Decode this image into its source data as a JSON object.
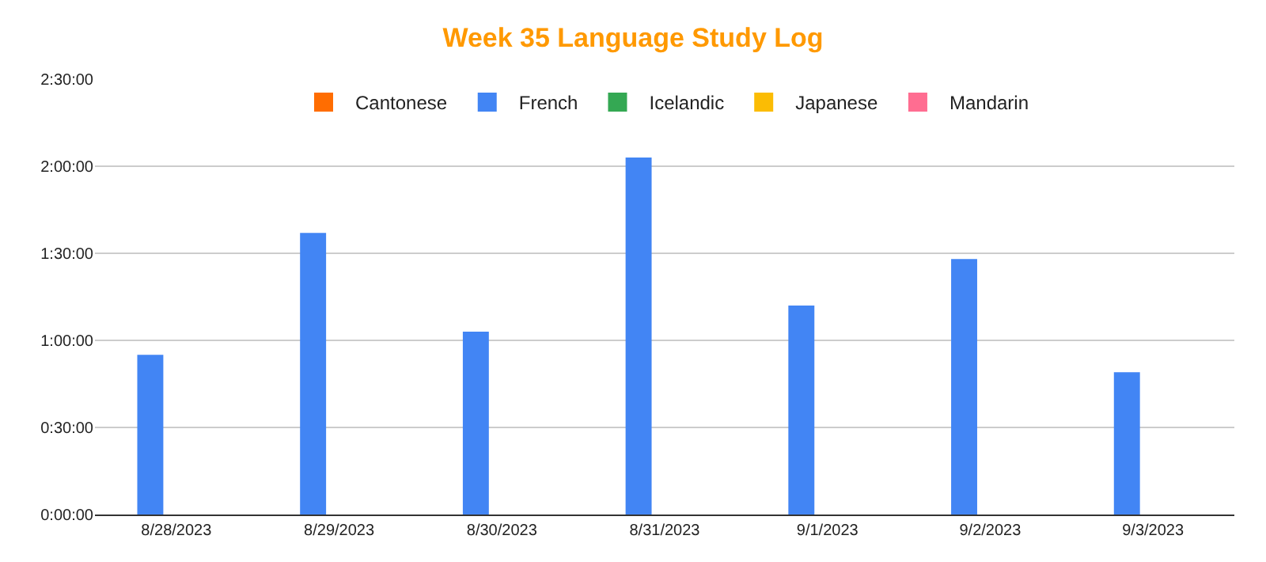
{
  "chart_data": {
    "type": "bar",
    "title": "Week 35 Language Study Log",
    "categories": [
      "8/28/2023",
      "8/29/2023",
      "8/30/2023",
      "8/31/2023",
      "9/1/2023",
      "9/2/2023",
      "9/3/2023"
    ],
    "series": [
      {
        "name": "Cantonese",
        "color": "#ff6d01",
        "values": [
          null,
          null,
          null,
          null,
          null,
          null,
          null
        ]
      },
      {
        "name": "French",
        "color": "#4285f4",
        "values": [
          55,
          97,
          63,
          123,
          72,
          88,
          49
        ]
      },
      {
        "name": "Icelandic",
        "color": "#34a853",
        "values": [
          null,
          null,
          null,
          null,
          null,
          null,
          null
        ]
      },
      {
        "name": "Japanese",
        "color": "#fbbc04",
        "values": [
          null,
          null,
          null,
          null,
          null,
          null,
          null
        ]
      },
      {
        "name": "Mandarin",
        "color": "#ff6d91",
        "values": [
          null,
          null,
          null,
          null,
          null,
          null,
          null
        ]
      }
    ],
    "ylim": [
      0,
      150
    ],
    "yticks": [
      {
        "value": 0,
        "label": "0:00:00"
      },
      {
        "value": 30,
        "label": "0:30:00"
      },
      {
        "value": 60,
        "label": "1:00:00"
      },
      {
        "value": 90,
        "label": "1:30:00"
      },
      {
        "value": 120,
        "label": "2:00:00"
      },
      {
        "value": 150,
        "label": "2:30:00"
      }
    ],
    "grid": "y",
    "legend": "top"
  }
}
